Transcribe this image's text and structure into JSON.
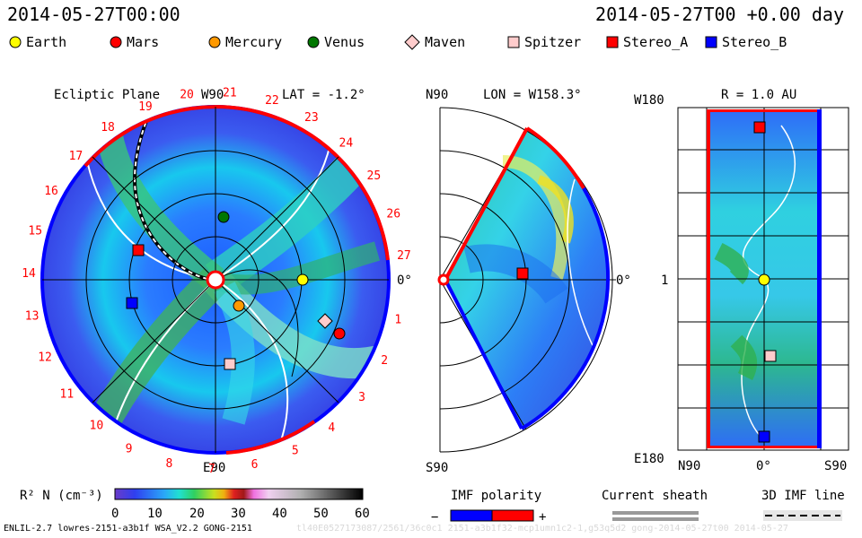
{
  "header": {
    "date_left": "2014-05-27T00:00",
    "date_right": "2014-05-27T00 +0.00 day"
  },
  "legend": [
    {
      "label": "Earth",
      "shape": "circle",
      "color": "#ffff00"
    },
    {
      "label": "Mars",
      "shape": "circle",
      "color": "#ff0000"
    },
    {
      "label": "Mercury",
      "shape": "circle",
      "color": "#ff9900"
    },
    {
      "label": "Venus",
      "shape": "circle",
      "color": "#007700"
    },
    {
      "label": "Maven",
      "shape": "diamond",
      "color": "#ffcccc"
    },
    {
      "label": "Spitzer",
      "shape": "square",
      "color": "#ffcccc"
    },
    {
      "label": "Stereo_A",
      "shape": "square",
      "color": "#ff0000"
    },
    {
      "label": "Stereo_B",
      "shape": "square",
      "color": "#0000ff"
    }
  ],
  "ecliptic": {
    "title": "Ecliptic Plane",
    "top_label": "W90",
    "bottom_label": "E90",
    "right_label": "0°",
    "lat_label": "LAT = -1.2°",
    "rotation_numbers": [
      "1",
      "2",
      "3",
      "4",
      "5",
      "6",
      "7",
      "8",
      "9",
      "10",
      "11",
      "12",
      "13",
      "14",
      "15",
      "16",
      "17",
      "18",
      "19",
      "20",
      "21",
      "22",
      "23",
      "24",
      "25",
      "26",
      "27"
    ]
  },
  "meridional": {
    "lon_label": "LON = W158.3°",
    "top_label": "N90",
    "bottom_label": "S90",
    "right_label": "0°"
  },
  "radial": {
    "r_label": "R = 1.0 AU",
    "top_left": "W180",
    "mid_left": "1",
    "bottom_left": "E180",
    "x_left": "N90",
    "x_mid": "0°",
    "x_right": "S90"
  },
  "colorbar": {
    "label": "R² N (cm⁻³)",
    "ticks": [
      "0",
      "10",
      "20",
      "30",
      "40",
      "50",
      "60"
    ]
  },
  "imf": {
    "title": "IMF polarity",
    "minus": "−",
    "plus": "+"
  },
  "sheath": {
    "title": "Current sheath"
  },
  "imf3d": {
    "title": "3D IMF line"
  },
  "footer": {
    "left": "ENLIL-2.7 lowres-2151-a3b1f WSA_V2.2 GONG-2151",
    "right": "tl40E0527173087/2561/36c0c1 2151-a3b1f32-mcp1umn1c2-1,g53q5d2 gong-2014-05-27t00     2014-05-27"
  }
}
